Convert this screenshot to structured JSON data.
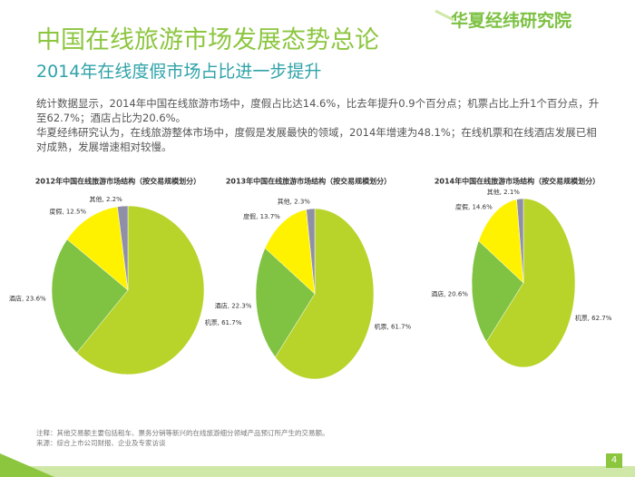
{
  "header": {
    "title": "中国在线旅游市场发展态势总论",
    "subtitle": "2014年在线度假市场占比进一步提升",
    "logo": "华夏经纬研究院"
  },
  "body": {
    "paragraphs": [
      "统计数据显示，2014年中国在线旅游市场中，度假占比达14.6%，比去年提升0.9个百分点；机票占比上升1个百分点，升至62.7%；酒店占比为20.6%。",
      "华夏经纬研究认为，在线旅游整体市场中，度假是发展最快的领域，2014年增速为48.1%；在线机票和在线酒店发展已相对成熟，发展增速相对较慢。"
    ]
  },
  "chart_data": [
    {
      "type": "pie",
      "title": "2012年中国在线旅游市场结构（按交易规模划分）",
      "values": [
        61.7,
        23.6,
        12.5,
        2.2
      ],
      "value_labels": [
        "机票, 61.7%",
        "酒店, 23.6%",
        "度假, 12.5%",
        "其他, 2.2%"
      ],
      "colors": [
        "#b8d42a",
        "#80c242",
        "#fff200",
        "#8f8fa8"
      ]
    },
    {
      "type": "pie",
      "title": "2013年中国在线旅游市场结构（按交易规模划分）",
      "values": [
        61.7,
        22.3,
        13.7,
        2.3
      ],
      "value_labels": [
        "机票, 61.7%",
        "酒店, 22.3%",
        "度假, 13.7%",
        "其他, 2.3%"
      ],
      "colors": [
        "#b8d42a",
        "#80c242",
        "#fff200",
        "#8f8fa8"
      ]
    },
    {
      "type": "pie",
      "title": "2014年中国在线旅游市场结构（按交易规模划分）",
      "values": [
        62.7,
        20.6,
        14.6,
        2.1
      ],
      "value_labels": [
        "机票, 62.7%",
        "酒店, 20.6%",
        "度假, 14.6%",
        "其他, 2.1%"
      ],
      "colors": [
        "#b8d42a",
        "#80c242",
        "#fff200",
        "#8f8fa8"
      ]
    }
  ],
  "footer": {
    "notes": [
      "注释：其他交易额主要包括租车、票务分销等新兴的在线旅游细分领域产品预订所产生的交易额。",
      "来源：综合上市公司财报、企业及专家访谈"
    ],
    "page": "4"
  }
}
